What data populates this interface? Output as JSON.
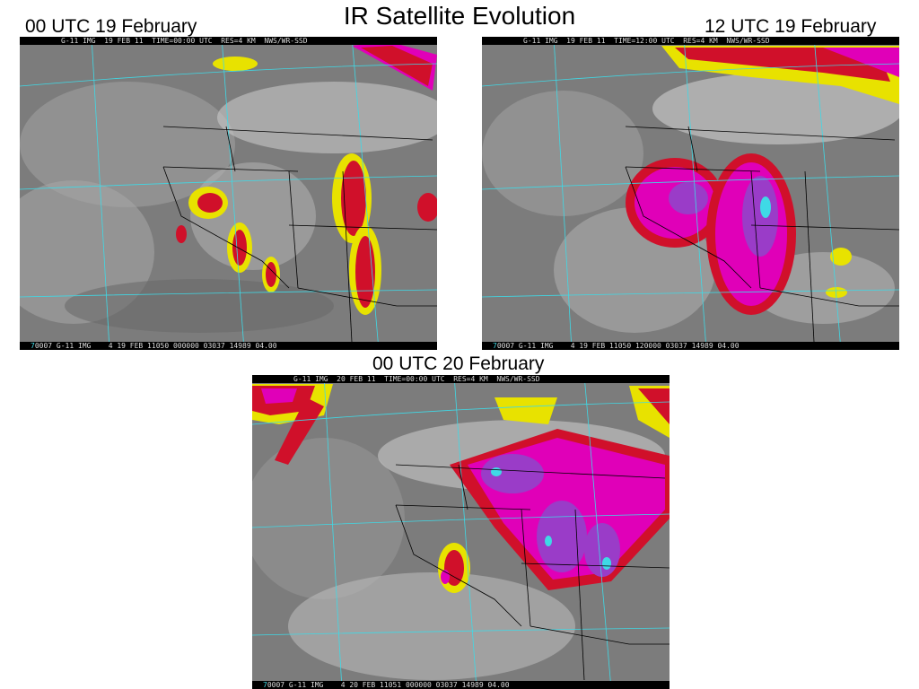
{
  "title": "IR Satellite Evolution",
  "panels": [
    {
      "label": "00 UTC 19 February",
      "header": "G-11 IMG  19 FEB 11  TIME=00:00 UTC  RES=4 KM  NWS/WR-SSD",
      "footer_prefix": "7",
      "footer": "0007 G-11 IMG    4 19 FEB 11050 000000 03037 14989 04.00"
    },
    {
      "label": "12 UTC 19 February",
      "header": "G-11 IMG  19 FEB 11  TIME=12:00 UTC  RES=4 KM  NWS/WR-SSD",
      "footer_prefix": "7",
      "footer": "0007 G-11 IMG    4 19 FEB 11050 120000 03037 14989 04.00"
    },
    {
      "label": "00 UTC 20 February",
      "header": "G-11 IMG  20 FEB 11  TIME=00:00 UTC  RES=4 KM  NWS/WR-SSD",
      "footer_prefix": "7",
      "footer": "0007 G-11 IMG    4 20 FEB 11051 000000 03037 14989 04.00"
    }
  ],
  "colors": {
    "background_ir": "#7a7a7a",
    "cloud_bright": "#e6e6e6",
    "cold_yellow": "#e8e200",
    "cold_red": "#d0102a",
    "cold_magenta": "#e000b8",
    "cold_purple": "#9a3cc8",
    "cold_cyan": "#3fd9e6",
    "graticule": "#3fd9e6",
    "borders": "#000000"
  }
}
